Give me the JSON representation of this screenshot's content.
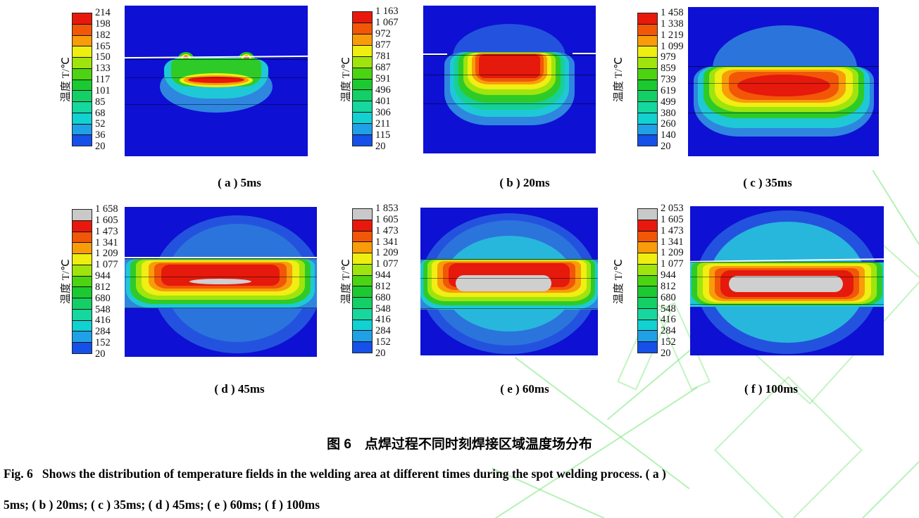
{
  "figure": {
    "legend_colors": [
      "#e8190c",
      "#f25607",
      "#f99c09",
      "#eeee10",
      "#a0e40d",
      "#4cd312",
      "#1cc930",
      "#14cf66",
      "#16d79e",
      "#12d1d1",
      "#20a0e6",
      "#1550e8"
    ],
    "legend_gray_top_color": "#c9c9c9",
    "panel_background_color": "#0e10d4",
    "watermark_color": "#78e678",
    "panels": [
      {
        "id": "a",
        "caption": "( a ) 5ms",
        "legend": {
          "label": "温度 T/℃",
          "has_gray_top": false,
          "values": [
            "214",
            "198",
            "182",
            "165",
            "150",
            "133",
            "117",
            "101",
            "85",
            "68",
            "52",
            "36",
            "20"
          ]
        }
      },
      {
        "id": "b",
        "caption": "( b ) 20ms",
        "legend": {
          "label": "温度 T/℃",
          "has_gray_top": false,
          "values": [
            "1 163",
            "1 067",
            "972",
            "877",
            "781",
            "687",
            "591",
            "496",
            "401",
            "306",
            "211",
            "115",
            "20"
          ]
        }
      },
      {
        "id": "c",
        "caption": "( c ) 35ms",
        "legend": {
          "label": "温度 T/℃",
          "has_gray_top": false,
          "values": [
            "1 458",
            "1 338",
            "1 219",
            "1 099",
            "979",
            "859",
            "739",
            "619",
            "499",
            "380",
            "260",
            "140",
            "20"
          ]
        }
      },
      {
        "id": "d",
        "caption": "( d ) 45ms",
        "legend": {
          "label": "温度 T/℃",
          "has_gray_top": true,
          "values": [
            "1 658",
            "1 605",
            "1 473",
            "1 341",
            "1 209",
            "1 077",
            "944",
            "812",
            "680",
            "548",
            "416",
            "284",
            "152",
            "20"
          ]
        }
      },
      {
        "id": "e",
        "caption": "( e ) 60ms",
        "legend": {
          "label": "温度 T/℃",
          "has_gray_top": true,
          "values": [
            "1 853",
            "1 605",
            "1 473",
            "1 341",
            "1 209",
            "1 077",
            "944",
            "812",
            "680",
            "548",
            "416",
            "284",
            "152",
            "20"
          ]
        }
      },
      {
        "id": "f",
        "caption": "( f ) 100ms",
        "legend": {
          "label": "温度 T/℃",
          "has_gray_top": true,
          "values": [
            "2 053",
            "1 605",
            "1 473",
            "1 341",
            "1 209",
            "1 077",
            "944",
            "812",
            "680",
            "548",
            "416",
            "284",
            "152",
            "20"
          ]
        }
      }
    ],
    "caption_cn": "图 6　点焊过程不同时刻焊接区域温度场分布",
    "caption_en_line1": "Fig. 6   Shows the distribution of temperature fields in the welding area at different times during the spot welding process. ( a )",
    "caption_en_line2": "5ms; ( b ) 20ms; ( c ) 35ms; ( d ) 45ms; ( e ) 60ms; ( f ) 100ms"
  },
  "chart_data": [
    {
      "type": "heatmap",
      "panel": "a",
      "time_ms": 5,
      "legend_label": "温度 T/℃",
      "contour_levels_C": [
        214,
        198,
        182,
        165,
        150,
        133,
        117,
        101,
        85,
        68,
        52,
        36,
        20
      ],
      "max_temp_C": 214
    },
    {
      "type": "heatmap",
      "panel": "b",
      "time_ms": 20,
      "legend_label": "温度 T/℃",
      "contour_levels_C": [
        1163,
        1067,
        972,
        877,
        781,
        687,
        591,
        496,
        401,
        306,
        211,
        115,
        20
      ],
      "max_temp_C": 1163
    },
    {
      "type": "heatmap",
      "panel": "c",
      "time_ms": 35,
      "legend_label": "温度 T/℃",
      "contour_levels_C": [
        1458,
        1338,
        1219,
        1099,
        979,
        859,
        739,
        619,
        499,
        380,
        260,
        140,
        20
      ],
      "max_temp_C": 1458
    },
    {
      "type": "heatmap",
      "panel": "d",
      "time_ms": 45,
      "legend_label": "温度 T/℃",
      "contour_levels_C": [
        1658,
        1605,
        1473,
        1341,
        1209,
        1077,
        944,
        812,
        680,
        548,
        416,
        284,
        152,
        20
      ],
      "max_temp_C": 1658
    },
    {
      "type": "heatmap",
      "panel": "e",
      "time_ms": 60,
      "legend_label": "温度 T/℃",
      "contour_levels_C": [
        1853,
        1605,
        1473,
        1341,
        1209,
        1077,
        944,
        812,
        680,
        548,
        416,
        284,
        152,
        20
      ],
      "max_temp_C": 1853
    },
    {
      "type": "heatmap",
      "panel": "f",
      "time_ms": 100,
      "legend_label": "温度 T/℃",
      "contour_levels_C": [
        2053,
        1605,
        1473,
        1341,
        1209,
        1077,
        944,
        812,
        680,
        548,
        416,
        284,
        152,
        20
      ],
      "max_temp_C": 2053
    }
  ]
}
